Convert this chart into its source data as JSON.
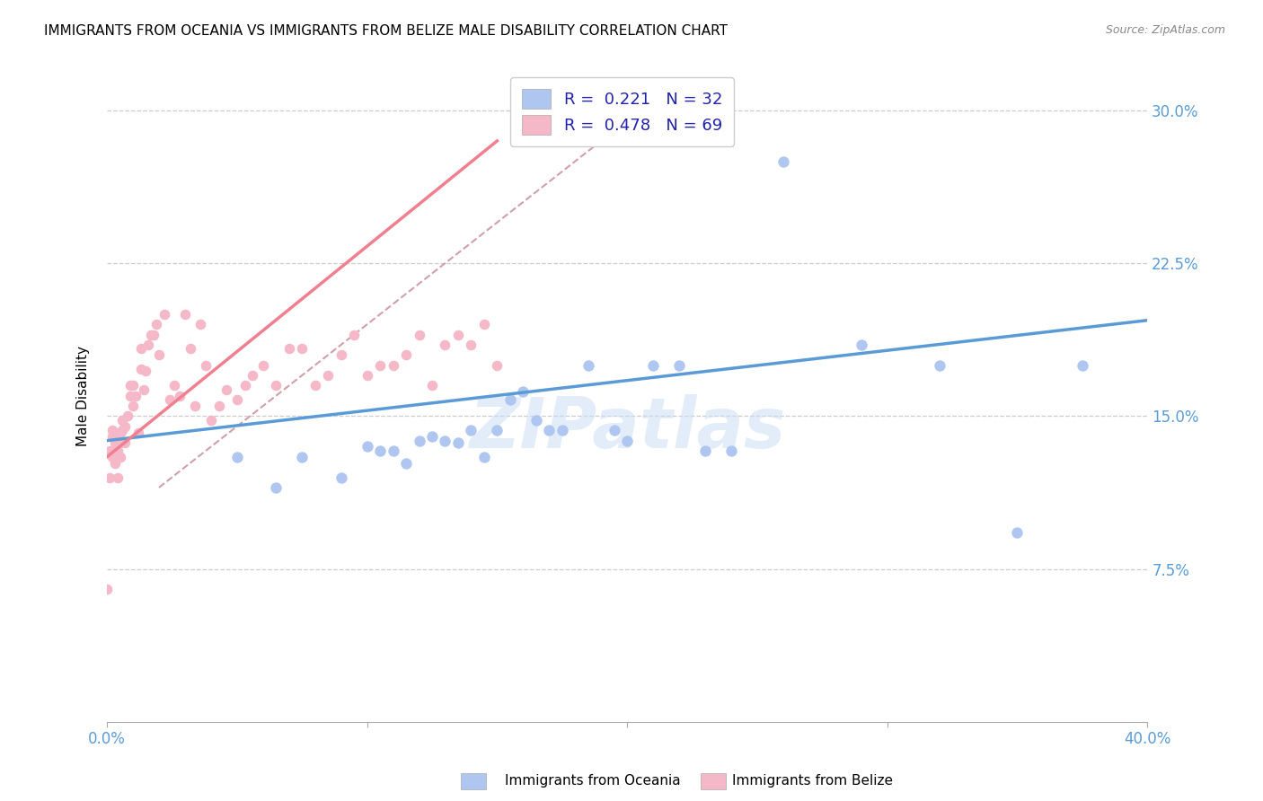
{
  "title": "IMMIGRANTS FROM OCEANIA VS IMMIGRANTS FROM BELIZE MALE DISABILITY CORRELATION CHART",
  "source": "Source: ZipAtlas.com",
  "ylabel": "Male Disability",
  "xlim": [
    0.0,
    0.4
  ],
  "ylim": [
    0.0,
    0.32
  ],
  "xticks": [
    0.0,
    0.1,
    0.2,
    0.3,
    0.4
  ],
  "xticklabels": [
    "0.0%",
    "",
    "",
    "",
    "40.0%"
  ],
  "yticks": [
    0.0,
    0.075,
    0.15,
    0.225,
    0.3
  ],
  "yticklabels": [
    "",
    "7.5%",
    "15.0%",
    "22.5%",
    "30.0%"
  ],
  "color_oceania": "#aec6f0",
  "color_belize": "#f4b8c8",
  "color_line_oceania": "#5b9bd5",
  "color_line_belize": "#f08090",
  "color_trend_dashed": "#d0a0a8",
  "watermark": "ZIPatlas",
  "oceania_x": [
    0.05,
    0.065,
    0.075,
    0.09,
    0.1,
    0.105,
    0.11,
    0.115,
    0.12,
    0.125,
    0.13,
    0.135,
    0.14,
    0.145,
    0.15,
    0.155,
    0.16,
    0.165,
    0.17,
    0.175,
    0.185,
    0.195,
    0.2,
    0.21,
    0.22,
    0.23,
    0.24,
    0.26,
    0.29,
    0.32,
    0.35,
    0.375
  ],
  "oceania_y": [
    0.13,
    0.115,
    0.13,
    0.12,
    0.135,
    0.133,
    0.133,
    0.127,
    0.138,
    0.14,
    0.138,
    0.137,
    0.143,
    0.13,
    0.143,
    0.158,
    0.162,
    0.148,
    0.143,
    0.143,
    0.175,
    0.143,
    0.138,
    0.175,
    0.175,
    0.133,
    0.133,
    0.275,
    0.185,
    0.175,
    0.093,
    0.175
  ],
  "belize_x": [
    0.0,
    0.001,
    0.001,
    0.002,
    0.002,
    0.002,
    0.003,
    0.003,
    0.003,
    0.004,
    0.004,
    0.004,
    0.005,
    0.005,
    0.005,
    0.006,
    0.006,
    0.007,
    0.007,
    0.008,
    0.009,
    0.009,
    0.01,
    0.01,
    0.011,
    0.012,
    0.013,
    0.013,
    0.014,
    0.015,
    0.016,
    0.017,
    0.018,
    0.019,
    0.02,
    0.022,
    0.024,
    0.026,
    0.028,
    0.03,
    0.032,
    0.034,
    0.036,
    0.038,
    0.04,
    0.043,
    0.046,
    0.05,
    0.053,
    0.056,
    0.06,
    0.065,
    0.07,
    0.075,
    0.08,
    0.085,
    0.09,
    0.095,
    0.1,
    0.105,
    0.11,
    0.115,
    0.12,
    0.125,
    0.13,
    0.135,
    0.14,
    0.145,
    0.15
  ],
  "belize_y": [
    0.065,
    0.12,
    0.133,
    0.13,
    0.14,
    0.143,
    0.127,
    0.133,
    0.137,
    0.12,
    0.133,
    0.14,
    0.13,
    0.137,
    0.142,
    0.143,
    0.148,
    0.137,
    0.145,
    0.15,
    0.16,
    0.165,
    0.155,
    0.165,
    0.16,
    0.142,
    0.173,
    0.183,
    0.163,
    0.172,
    0.185,
    0.19,
    0.19,
    0.195,
    0.18,
    0.2,
    0.158,
    0.165,
    0.16,
    0.2,
    0.183,
    0.155,
    0.195,
    0.175,
    0.148,
    0.155,
    0.163,
    0.158,
    0.165,
    0.17,
    0.175,
    0.165,
    0.183,
    0.183,
    0.165,
    0.17,
    0.18,
    0.19,
    0.17,
    0.175,
    0.175,
    0.18,
    0.19,
    0.165,
    0.185,
    0.19,
    0.185,
    0.195,
    0.175
  ],
  "oceania_line_x0": 0.0,
  "oceania_line_x1": 0.4,
  "oceania_line_y0": 0.138,
  "oceania_line_y1": 0.197,
  "belize_line_x0": 0.0,
  "belize_line_x1": 0.15,
  "belize_line_y0": 0.13,
  "belize_line_y1": 0.285,
  "dash_line_x0": 0.02,
  "dash_line_x1": 0.2,
  "dash_line_y0": 0.115,
  "dash_line_y1": 0.295
}
